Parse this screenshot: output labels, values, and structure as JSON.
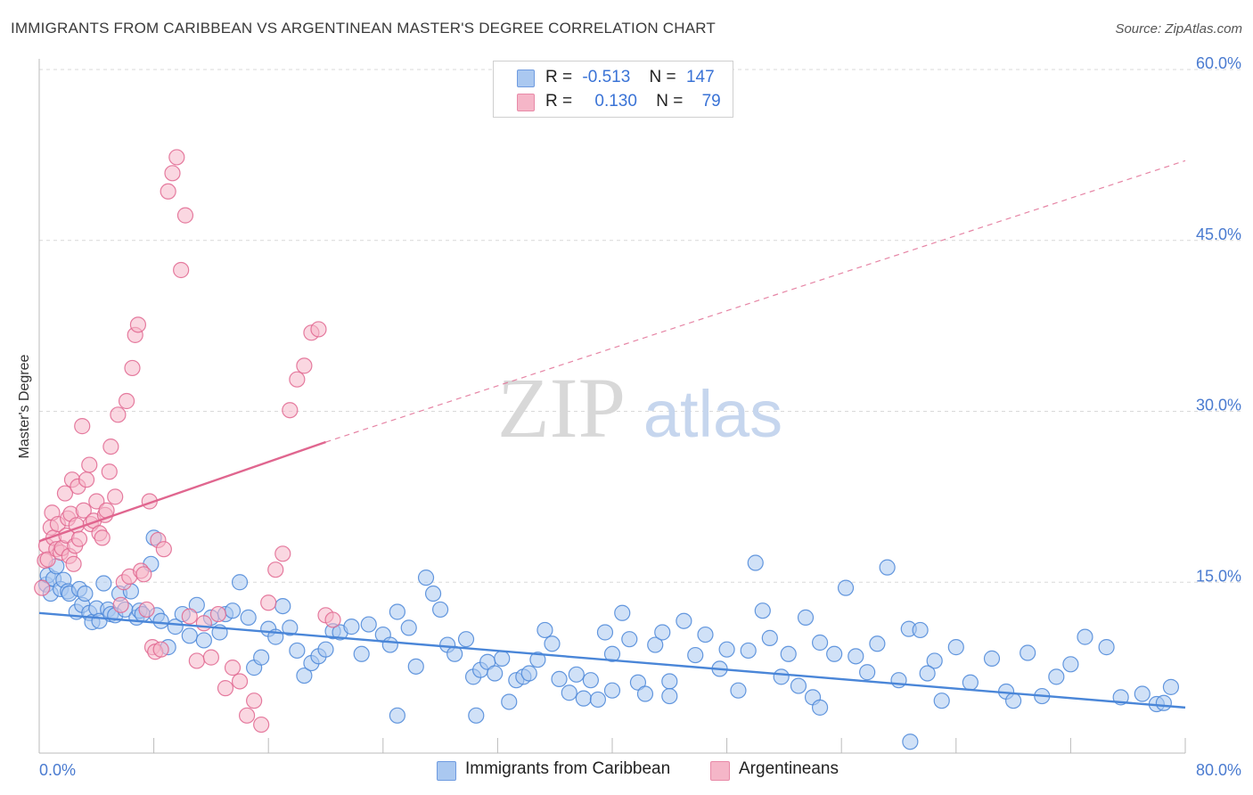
{
  "title": "IMMIGRANTS FROM CARIBBEAN VS ARGENTINEAN MASTER'S DEGREE CORRELATION CHART",
  "source": "Source: ZipAtlas.com",
  "watermark": {
    "zip": "ZIP",
    "atlas": "atlas"
  },
  "legend": {
    "rows": [
      {
        "r_label": "R =",
        "r_value": "-0.513",
        "n_label": "N =",
        "n_value": "147",
        "color": "#aac8f0"
      },
      {
        "r_label": "R =",
        "r_value": "0.130",
        "n_label": "N =",
        "n_value": "79",
        "color": "#f5b6c8"
      }
    ]
  },
  "bottom_legend": [
    {
      "label": "Immigrants from Caribbean",
      "color": "#aac8f0"
    },
    {
      "label": "Argentineans",
      "color": "#f5b6c8"
    }
  ],
  "chart_data": {
    "type": "scatter",
    "title": "IMMIGRANTS FROM CARIBBEAN VS ARGENTINEAN MASTER'S DEGREE CORRELATION CHART",
    "xlabel": "",
    "ylabel": "Master's Degree",
    "xlim": [
      0,
      80
    ],
    "ylim": [
      0,
      60
    ],
    "x_tick_labels": [
      "0.0%",
      "80.0%"
    ],
    "y_ticks": [
      15,
      30,
      45,
      60
    ],
    "y_tick_labels": [
      "15.0%",
      "30.0%",
      "45.0%",
      "60.0%"
    ],
    "grid": "horizontal dashed",
    "legend_position": "top-center",
    "series": [
      {
        "name": "Immigrants from Caribbean",
        "color": "#4a86d8",
        "fill": "#aac8f0",
        "trend": {
          "x0": 0,
          "y0": 12.3,
          "x1": 80,
          "y1": 4.0,
          "style": "solid"
        },
        "points": [
          [
            0.5,
            14.8
          ],
          [
            0.6,
            15.6
          ],
          [
            0.8,
            14.0
          ],
          [
            1.0,
            15.3
          ],
          [
            1.2,
            16.4
          ],
          [
            1.5,
            14.4
          ],
          [
            1.7,
            15.2
          ],
          [
            2.0,
            14.2
          ],
          [
            2.1,
            14.0
          ],
          [
            2.6,
            12.4
          ],
          [
            2.8,
            14.4
          ],
          [
            3.0,
            13.0
          ],
          [
            3.2,
            14.0
          ],
          [
            3.5,
            12.3
          ],
          [
            3.7,
            11.5
          ],
          [
            4.0,
            12.7
          ],
          [
            4.2,
            11.6
          ],
          [
            4.5,
            14.9
          ],
          [
            4.8,
            12.6
          ],
          [
            5.0,
            12.2
          ],
          [
            5.3,
            12.1
          ],
          [
            5.6,
            14.0
          ],
          [
            6.0,
            12.6
          ],
          [
            6.4,
            14.2
          ],
          [
            6.8,
            11.9
          ],
          [
            7.0,
            12.5
          ],
          [
            7.2,
            12.2
          ],
          [
            7.8,
            16.6
          ],
          [
            8.0,
            18.9
          ],
          [
            8.2,
            12.1
          ],
          [
            8.5,
            11.6
          ],
          [
            9.0,
            9.3
          ],
          [
            9.5,
            11.1
          ],
          [
            10.0,
            12.2
          ],
          [
            10.5,
            10.3
          ],
          [
            11.0,
            13.0
          ],
          [
            11.5,
            9.9
          ],
          [
            12.0,
            11.9
          ],
          [
            12.6,
            10.6
          ],
          [
            13.0,
            12.2
          ],
          [
            13.5,
            12.5
          ],
          [
            14.0,
            15.0
          ],
          [
            14.6,
            11.9
          ],
          [
            15.0,
            7.5
          ],
          [
            15.5,
            8.4
          ],
          [
            16.0,
            10.9
          ],
          [
            16.5,
            10.2
          ],
          [
            17.0,
            12.9
          ],
          [
            17.5,
            11.0
          ],
          [
            18.0,
            9.0
          ],
          [
            18.5,
            6.8
          ],
          [
            19.0,
            7.9
          ],
          [
            19.5,
            8.5
          ],
          [
            20.0,
            9.1
          ],
          [
            20.5,
            10.7
          ],
          [
            21.0,
            10.6
          ],
          [
            21.8,
            11.1
          ],
          [
            22.5,
            8.7
          ],
          [
            23.0,
            11.3
          ],
          [
            24.0,
            10.4
          ],
          [
            24.5,
            9.5
          ],
          [
            25.0,
            12.4
          ],
          [
            25.8,
            11.0
          ],
          [
            26.3,
            7.6
          ],
          [
            27.0,
            15.4
          ],
          [
            27.5,
            14.0
          ],
          [
            28.0,
            12.6
          ],
          [
            28.5,
            9.5
          ],
          [
            29.0,
            8.7
          ],
          [
            29.8,
            10.0
          ],
          [
            30.3,
            6.7
          ],
          [
            30.8,
            7.3
          ],
          [
            31.3,
            8.0
          ],
          [
            31.8,
            7.0
          ],
          [
            32.3,
            8.3
          ],
          [
            32.8,
            4.5
          ],
          [
            33.3,
            6.4
          ],
          [
            33.8,
            6.7
          ],
          [
            34.2,
            7.0
          ],
          [
            34.8,
            8.2
          ],
          [
            35.3,
            10.8
          ],
          [
            35.8,
            9.6
          ],
          [
            36.3,
            6.5
          ],
          [
            37.0,
            5.3
          ],
          [
            37.5,
            6.9
          ],
          [
            38.0,
            4.8
          ],
          [
            38.5,
            6.4
          ],
          [
            39.0,
            4.7
          ],
          [
            39.5,
            10.6
          ],
          [
            40.0,
            8.7
          ],
          [
            40.7,
            12.3
          ],
          [
            41.2,
            10.0
          ],
          [
            41.8,
            6.2
          ],
          [
            42.3,
            5.2
          ],
          [
            43.0,
            9.5
          ],
          [
            43.5,
            10.6
          ],
          [
            44.0,
            6.3
          ],
          [
            45.0,
            11.6
          ],
          [
            45.8,
            8.6
          ],
          [
            46.5,
            10.4
          ],
          [
            47.5,
            7.4
          ],
          [
            48.0,
            9.1
          ],
          [
            48.8,
            5.5
          ],
          [
            49.5,
            9.0
          ],
          [
            50.0,
            16.7
          ],
          [
            50.5,
            12.5
          ],
          [
            51.0,
            10.1
          ],
          [
            51.8,
            6.7
          ],
          [
            52.3,
            8.7
          ],
          [
            53.0,
            5.9
          ],
          [
            53.5,
            11.9
          ],
          [
            54.0,
            4.9
          ],
          [
            54.5,
            9.7
          ],
          [
            55.5,
            8.7
          ],
          [
            56.3,
            14.5
          ],
          [
            57.0,
            8.5
          ],
          [
            57.8,
            7.1
          ],
          [
            58.5,
            9.6
          ],
          [
            59.2,
            16.3
          ],
          [
            60.0,
            6.4
          ],
          [
            60.7,
            10.9
          ],
          [
            61.5,
            10.8
          ],
          [
            62.5,
            8.1
          ],
          [
            63.0,
            4.6
          ],
          [
            64.0,
            9.3
          ],
          [
            65.0,
            6.2
          ],
          [
            66.5,
            8.3
          ],
          [
            67.5,
            5.4
          ],
          [
            68.0,
            4.6
          ],
          [
            69.0,
            8.8
          ],
          [
            70.0,
            5.0
          ],
          [
            71.0,
            6.7
          ],
          [
            72.0,
            7.8
          ],
          [
            73.0,
            10.2
          ],
          [
            74.5,
            9.3
          ],
          [
            75.5,
            4.9
          ],
          [
            77.0,
            5.2
          ],
          [
            78.0,
            4.3
          ],
          [
            78.5,
            4.4
          ],
          [
            79.0,
            5.8
          ],
          [
            30.5,
            3.3
          ],
          [
            44.0,
            5.0
          ],
          [
            54.5,
            4.0
          ],
          [
            62.0,
            7.0
          ],
          [
            40.0,
            5.5
          ],
          [
            60.8,
            1.0
          ],
          [
            25.0,
            3.3
          ]
        ]
      },
      {
        "name": "Argentineans",
        "color": "#e0668f",
        "fill": "#f5b6c8",
        "trend": {
          "x0": 0,
          "y0": 18.6,
          "x1": 20,
          "y1": 27.3,
          "style": "solid",
          "ext_x1": 80,
          "ext_y1": 52.0,
          "ext_style": "dashed"
        },
        "points": [
          [
            0.2,
            14.5
          ],
          [
            0.4,
            16.9
          ],
          [
            0.5,
            18.2
          ],
          [
            0.6,
            17.0
          ],
          [
            0.8,
            19.8
          ],
          [
            0.9,
            21.1
          ],
          [
            1.0,
            18.9
          ],
          [
            1.2,
            17.9
          ],
          [
            1.3,
            20.1
          ],
          [
            1.5,
            17.6
          ],
          [
            1.6,
            18.0
          ],
          [
            1.8,
            22.8
          ],
          [
            1.9,
            19.1
          ],
          [
            2.0,
            20.6
          ],
          [
            2.1,
            17.3
          ],
          [
            2.2,
            21.0
          ],
          [
            2.3,
            24.0
          ],
          [
            2.4,
            16.6
          ],
          [
            2.5,
            18.2
          ],
          [
            2.6,
            20.0
          ],
          [
            2.7,
            23.4
          ],
          [
            2.8,
            18.8
          ],
          [
            3.0,
            28.7
          ],
          [
            3.1,
            21.3
          ],
          [
            3.3,
            24.0
          ],
          [
            3.5,
            25.3
          ],
          [
            3.6,
            20.1
          ],
          [
            3.8,
            20.4
          ],
          [
            4.0,
            22.1
          ],
          [
            4.2,
            19.3
          ],
          [
            4.4,
            18.9
          ],
          [
            4.6,
            20.9
          ],
          [
            4.7,
            21.3
          ],
          [
            4.9,
            24.7
          ],
          [
            5.0,
            26.9
          ],
          [
            5.3,
            22.5
          ],
          [
            5.5,
            29.7
          ],
          [
            5.7,
            13.0
          ],
          [
            5.9,
            15.0
          ],
          [
            6.1,
            30.9
          ],
          [
            6.3,
            15.5
          ],
          [
            6.5,
            33.8
          ],
          [
            6.7,
            36.7
          ],
          [
            6.9,
            37.6
          ],
          [
            7.1,
            16.0
          ],
          [
            7.3,
            15.7
          ],
          [
            7.5,
            12.6
          ],
          [
            7.7,
            22.1
          ],
          [
            7.9,
            9.3
          ],
          [
            8.1,
            8.9
          ],
          [
            8.3,
            18.7
          ],
          [
            8.5,
            9.1
          ],
          [
            8.7,
            17.9
          ],
          [
            9.0,
            49.3
          ],
          [
            9.3,
            50.9
          ],
          [
            9.6,
            52.3
          ],
          [
            9.9,
            42.4
          ],
          [
            10.2,
            47.2
          ],
          [
            10.5,
            12.0
          ],
          [
            11.0,
            8.1
          ],
          [
            11.5,
            11.4
          ],
          [
            12.0,
            8.4
          ],
          [
            12.5,
            12.2
          ],
          [
            13.0,
            5.7
          ],
          [
            13.5,
            7.5
          ],
          [
            14.0,
            6.3
          ],
          [
            14.5,
            3.3
          ],
          [
            15.0,
            4.6
          ],
          [
            15.5,
            2.5
          ],
          [
            16.0,
            13.2
          ],
          [
            16.5,
            16.1
          ],
          [
            17.0,
            17.5
          ],
          [
            17.5,
            30.1
          ],
          [
            18.0,
            32.8
          ],
          [
            18.5,
            34.0
          ],
          [
            19.0,
            36.9
          ],
          [
            19.5,
            37.2
          ],
          [
            20.0,
            12.1
          ],
          [
            20.5,
            11.7
          ]
        ]
      }
    ]
  }
}
